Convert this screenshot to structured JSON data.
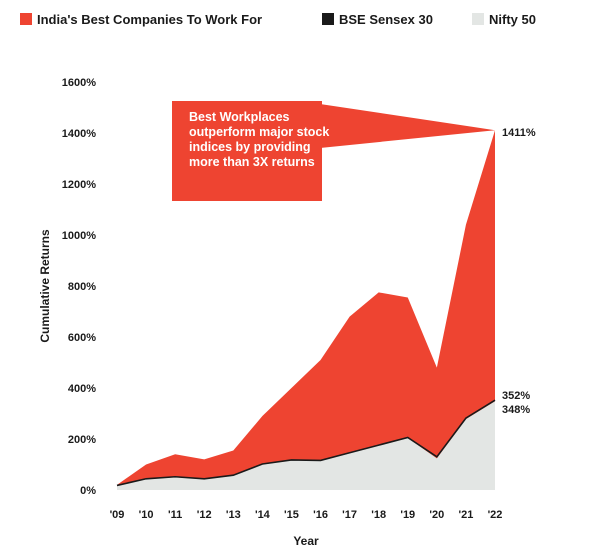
{
  "chart_data": {
    "type": "area",
    "title": "",
    "xlabel": "Year",
    "ylabel": "Cumulative Returns",
    "ylim": [
      0,
      1600
    ],
    "y_ticks": [
      0,
      200,
      400,
      600,
      800,
      1000,
      1200,
      1400,
      1600
    ],
    "y_tick_suffix": "%",
    "categories": [
      "'09",
      "'10",
      "'11",
      "'12",
      "'13",
      "'14",
      "'15",
      "'16",
      "'17",
      "'18",
      "'19",
      "'20",
      "'21",
      "'22"
    ],
    "legend_position": "top",
    "grid": false,
    "series": [
      {
        "name": "India's Best Companies To Work For",
        "color": "#ee4431",
        "values": [
          20,
          100,
          140,
          120,
          155,
          290,
          400,
          510,
          680,
          775,
          755,
          480,
          1040,
          1411
        ]
      },
      {
        "name": "BSE Sensex 30",
        "color": "#1a1a1a",
        "values": [
          18,
          44,
          52,
          44,
          58,
          102,
          118,
          116,
          146,
          176,
          206,
          130,
          282,
          352
        ]
      },
      {
        "name": "Nifty 50",
        "color": "#e3e6e4",
        "values": [
          18,
          42,
          50,
          42,
          56,
          100,
          116,
          114,
          144,
          174,
          204,
          124,
          278,
          348
        ]
      }
    ],
    "end_labels": [
      "1411%",
      "352%",
      "348%"
    ],
    "annotation": {
      "lines": [
        "Best Workplaces",
        "outperform major stock",
        "indices by providing",
        "more than 3X returns"
      ],
      "color": "#ee4431"
    }
  }
}
